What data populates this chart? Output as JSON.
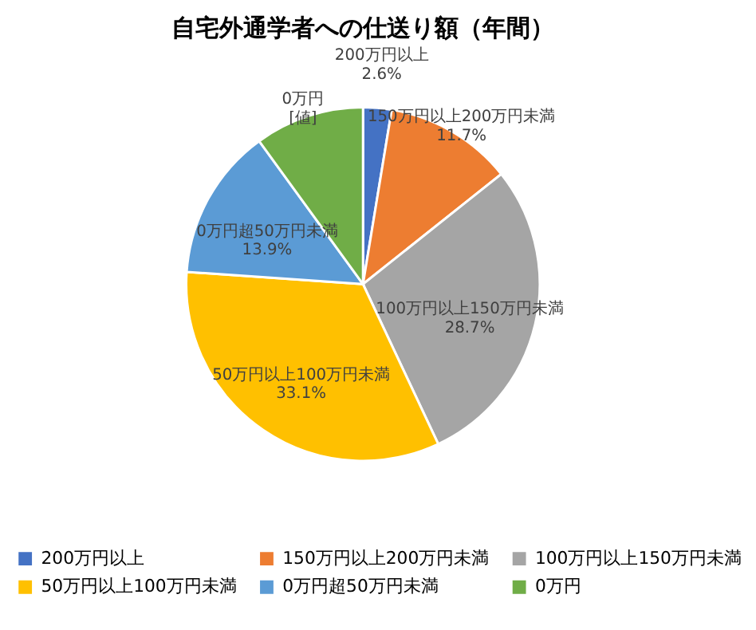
{
  "chart_data": {
    "type": "pie",
    "title": "自宅外通学者への仕送り額（年間）",
    "categories": [
      "200万円以上",
      "150万円以上200万円未満",
      "100万円以上150万円未満",
      "50万円以上100万円未満",
      "0万円超50万円未満",
      "0万円"
    ],
    "values": [
      2.6,
      11.7,
      28.7,
      33.1,
      13.9,
      10.0
    ],
    "value_labels": [
      "2.6%",
      "11.7%",
      "28.7%",
      "33.1%",
      "13.9%",
      "[値]"
    ],
    "colors": [
      "#4472c4",
      "#ed7d31",
      "#a5a5a5",
      "#ffc000",
      "#5b9bd5",
      "#70ad47"
    ],
    "legend": "bottom"
  }
}
